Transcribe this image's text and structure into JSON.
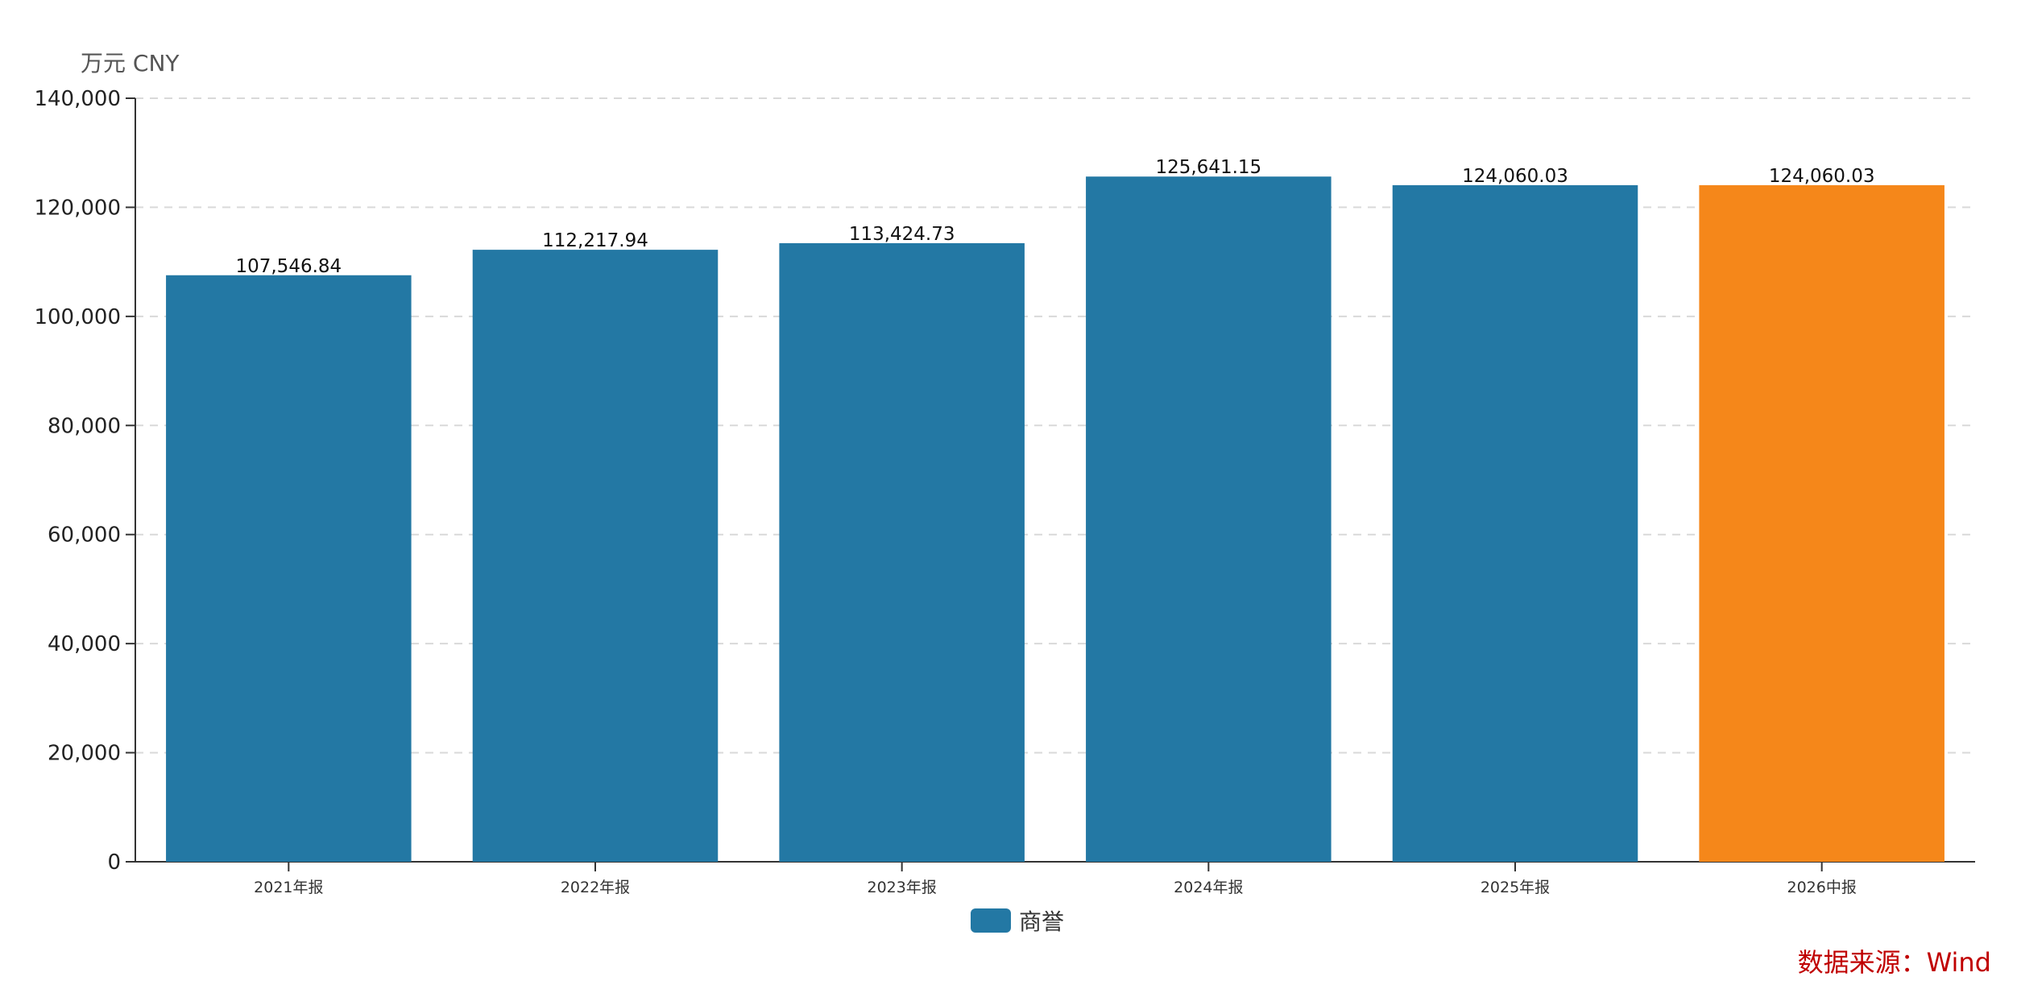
{
  "chart_data": {
    "type": "bar",
    "unit_label": "万元  CNY",
    "categories": [
      "2021年报",
      "2022年报",
      "2023年报",
      "2024年报",
      "2025年报",
      "2026中报"
    ],
    "series": [
      {
        "name": "商誉",
        "values": [
          107546.84,
          112217.94,
          113424.73,
          125641.15,
          124060.03,
          124060.03
        ],
        "labels": [
          "107,546.84",
          "112,217.94",
          "113,424.73",
          "125,641.15",
          "124,060.03",
          "124,060.03"
        ]
      }
    ],
    "ylim": [
      0,
      140000
    ],
    "yticks": [
      0,
      20000,
      40000,
      60000,
      80000,
      100000,
      120000,
      140000
    ],
    "ytick_labels": [
      "0",
      "20,000",
      "40,000",
      "60,000",
      "80,000",
      "100,000",
      "120,000",
      "140,000"
    ],
    "grid": true,
    "legend_position": "bottom-center",
    "colors": {
      "default": "#2378a4",
      "highlight": "#f5871a",
      "grid": "#d9d9d9",
      "axis": "#333333",
      "source": "#c00000"
    },
    "highlight_index": 5
  },
  "source_label": "数据来源：Wind"
}
